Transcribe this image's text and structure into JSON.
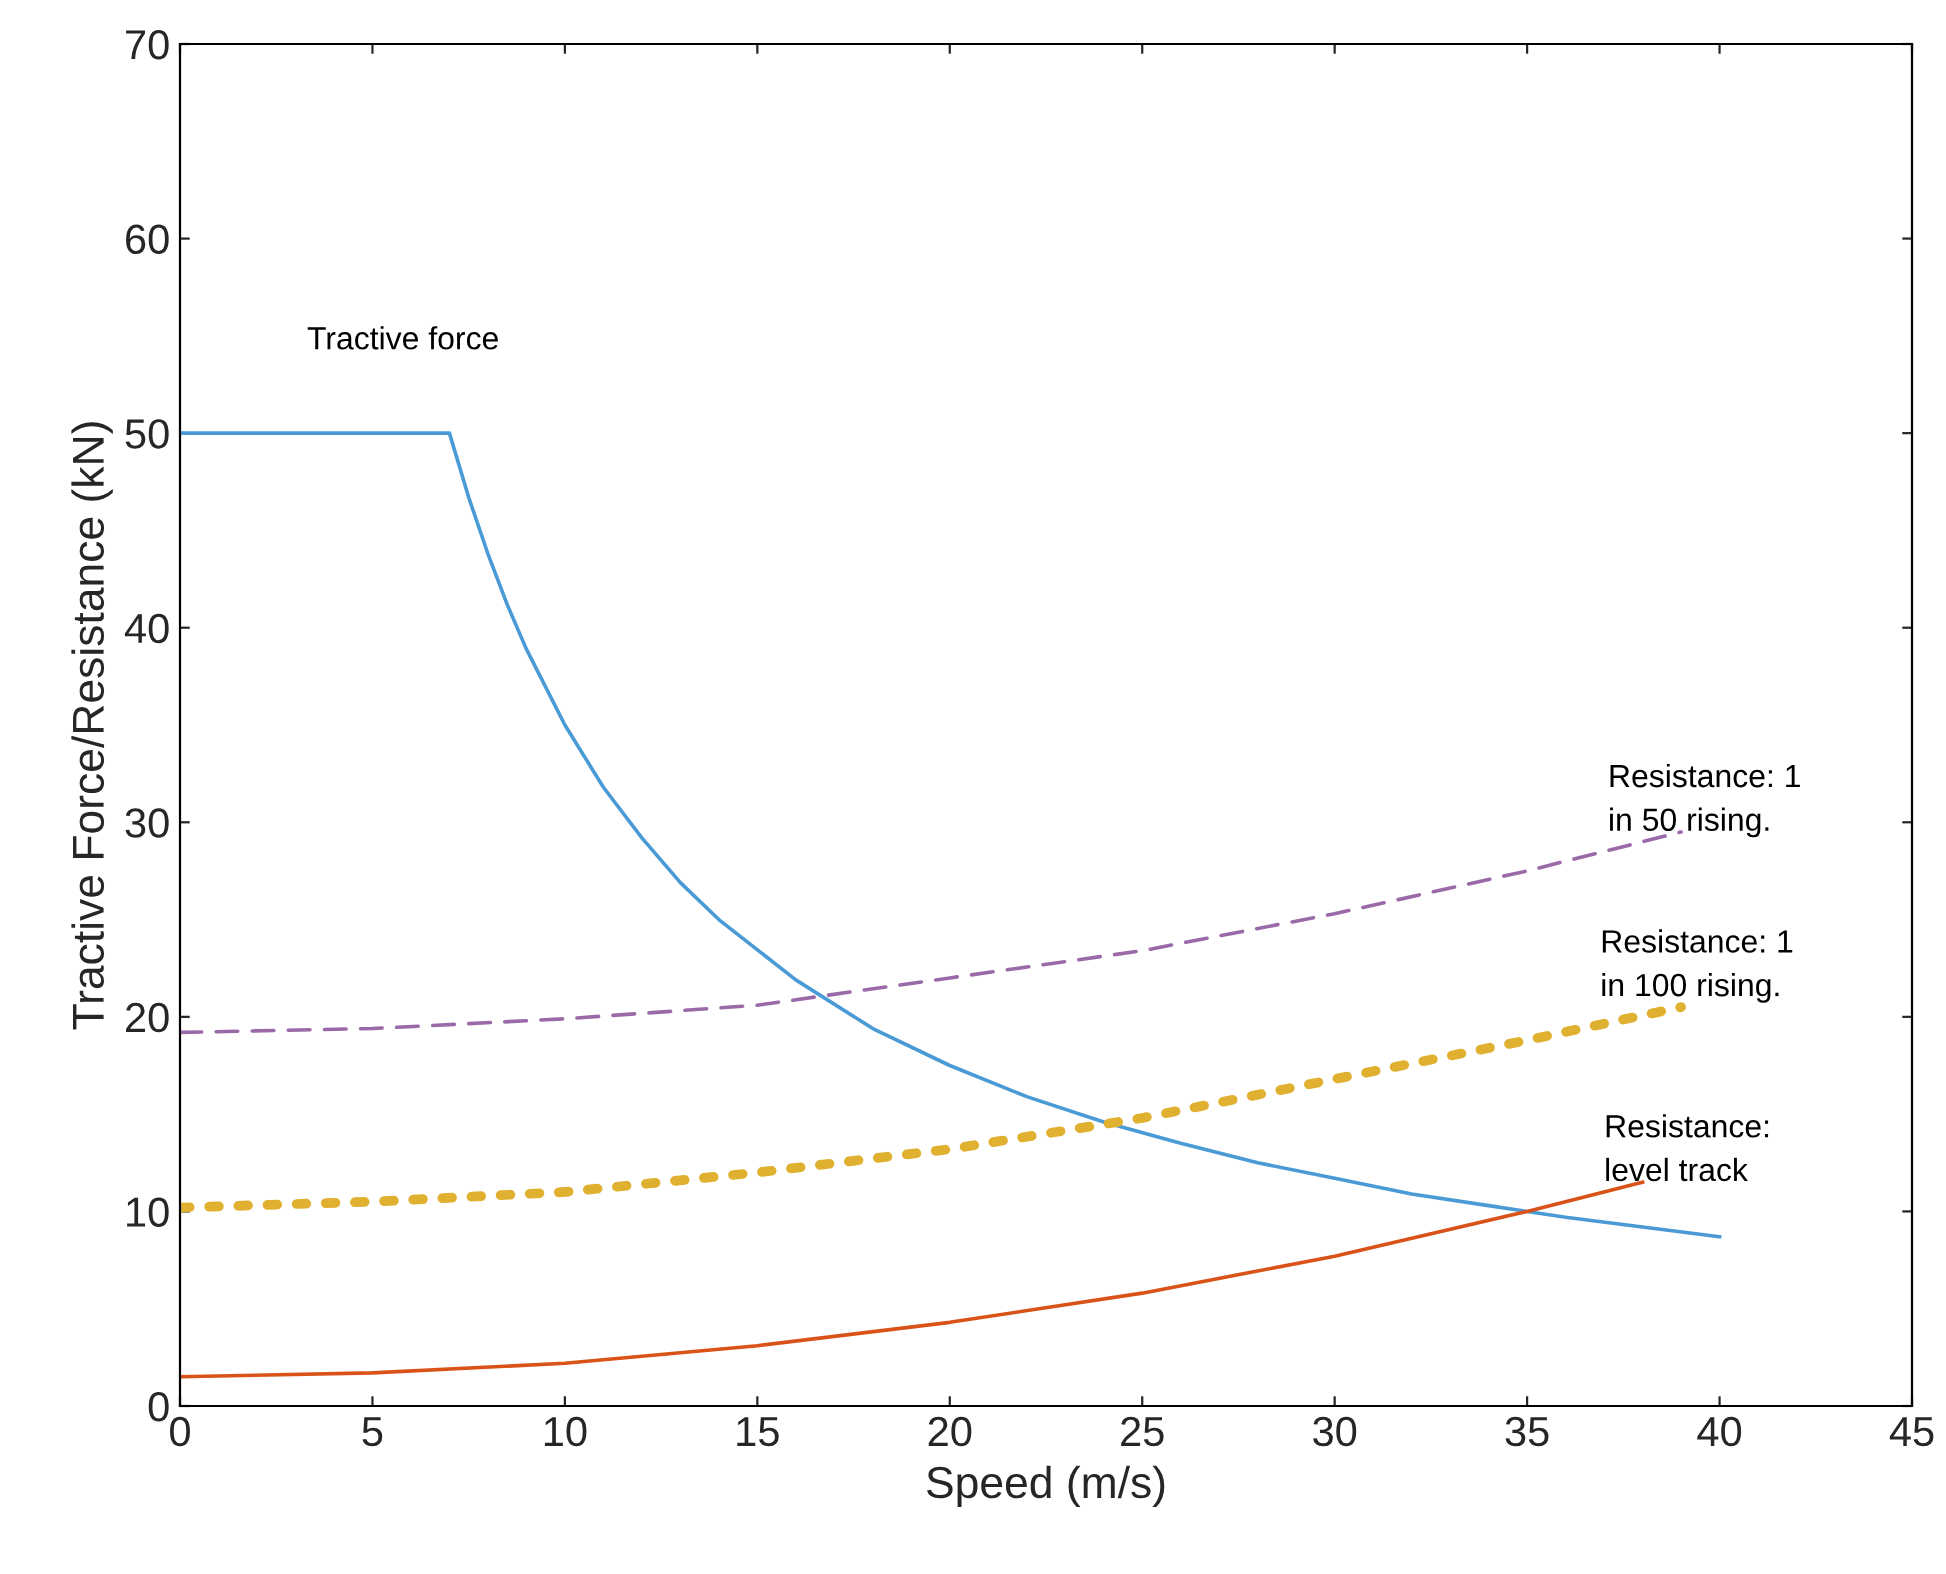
{
  "chart_data": {
    "type": "line",
    "xlabel": "Speed (m/s)",
    "ylabel": "Tractive Force/Resistance (kN)",
    "xlim": [
      0,
      45
    ],
    "xticks": [
      0,
      5,
      10,
      15,
      20,
      25,
      30,
      35,
      40,
      45
    ],
    "ylim": [
      0,
      70
    ],
    "yticks": [
      0,
      10,
      20,
      30,
      40,
      50,
      60,
      70
    ],
    "grid": false,
    "legend": false,
    "series": [
      {
        "name": "Tractive force",
        "color": "#4a9ad6",
        "line_style": "solid",
        "x": [
          0,
          7,
          7.5,
          8,
          8.5,
          9,
          10,
          11,
          12,
          13,
          14,
          16,
          18,
          20,
          22,
          24,
          26,
          28,
          30,
          32,
          34,
          36,
          38,
          40
        ],
        "values": [
          50,
          50,
          46.7,
          43.8,
          41.2,
          38.9,
          35,
          31.8,
          29.2,
          26.9,
          25,
          21.9,
          19.4,
          17.5,
          15.9,
          14.6,
          13.5,
          12.5,
          11.7,
          10.9,
          10.3,
          9.7,
          9.2,
          8.7
        ]
      },
      {
        "name": "Resistance:\nlevel track",
        "color": "#d95319",
        "line_style": "solid",
        "x": [
          0,
          5,
          10,
          15,
          20,
          25,
          30,
          35,
          38
        ],
        "values": [
          1.5,
          1.7,
          2.2,
          3.1,
          4.3,
          5.8,
          7.7,
          10,
          11.5
        ]
      },
      {
        "name": "Resistance: 1\nin 100 rising.",
        "color": "#e0b030",
        "line_style": "dotted",
        "x": [
          0,
          5,
          10,
          15,
          20,
          25,
          30,
          35,
          39
        ],
        "values": [
          10.2,
          10.5,
          11,
          12,
          13.2,
          14.8,
          16.8,
          18.8,
          20.5
        ]
      },
      {
        "name": "Resistance: 1\nin 50 rising.",
        "color": "#9a6aa8",
        "line_style": "dashed",
        "x": [
          0,
          5,
          10,
          15,
          20,
          25,
          30,
          35,
          39
        ],
        "values": [
          19.2,
          19.4,
          19.9,
          20.6,
          22,
          23.4,
          25.3,
          27.5,
          29.5
        ]
      }
    ]
  }
}
